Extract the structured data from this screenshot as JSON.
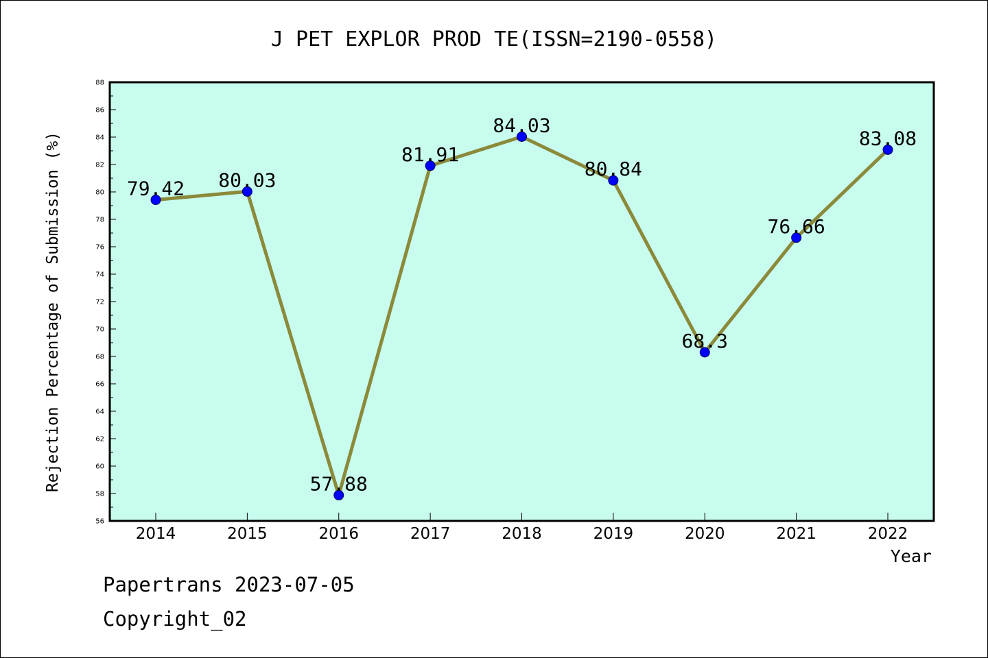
{
  "chart_data": {
    "type": "line",
    "title": "J PET EXPLOR PROD TE(ISSN=2190-0558)",
    "xlabel": "Year",
    "ylabel": "Rejection Percentage of Submission (%)",
    "categories": [
      "2014",
      "2015",
      "2016",
      "2017",
      "2018",
      "2019",
      "2020",
      "2021",
      "2022"
    ],
    "values": [
      79.42,
      80.03,
      57.88,
      81.91,
      84.03,
      80.84,
      68.3,
      76.66,
      83.08
    ],
    "data_labels": [
      "79.42",
      "80.03",
      "57.88",
      "81.91",
      "84.03",
      "80.84",
      "68.3",
      "76.66",
      "83.08"
    ],
    "ylim": [
      56,
      88
    ],
    "y_ticks": [
      "56",
      "58",
      "60",
      "62",
      "64",
      "66",
      "68",
      "70",
      "72",
      "74",
      "76",
      "78",
      "80",
      "82",
      "84",
      "86",
      "88"
    ],
    "grid": false,
    "legend": "none",
    "colors": {
      "plot_background": "#c8fcee",
      "line": "#8b8a3a",
      "marker": "#0000ff",
      "axis": "#000000"
    }
  },
  "footer": {
    "source": "Papertrans 2023-07-05",
    "copyright": "Copyright_02"
  }
}
